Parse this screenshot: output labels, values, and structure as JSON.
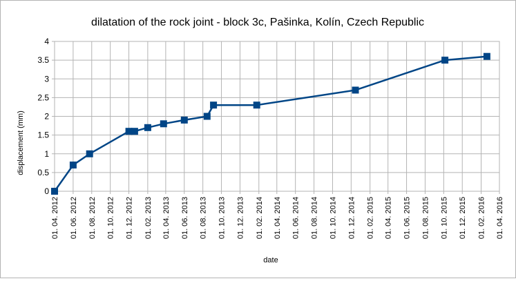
{
  "chart_data": {
    "type": "line",
    "title": "dilatation of the rock joint - block 3c, Pašinka, Kolín, Czech Republic",
    "xlabel": "date",
    "ylabel": "displacement (mm)",
    "ylim": [
      0,
      4
    ],
    "yticks": [
      "0",
      "0.5",
      "1",
      "1.5",
      "2",
      "2.5",
      "3",
      "3.5",
      "4"
    ],
    "xlim": [
      "2012-04-01",
      "2016-04-01"
    ],
    "xticks": [
      "01. 04. 2012",
      "01. 06. 2012",
      "01. 08. 2012",
      "01. 10. 2012",
      "01. 12. 2012",
      "01. 02. 2013",
      "01. 04. 2013",
      "01. 06. 2013",
      "01. 08. 2013",
      "01. 10. 2013",
      "01. 12. 2013",
      "01. 02. 2014",
      "01. 04. 2014",
      "01. 06. 2014",
      "01. 08. 2014",
      "01. 10. 2014",
      "01. 12. 2014",
      "01. 02. 2015",
      "01. 04. 2015",
      "01. 06. 2015",
      "01. 08. 2015",
      "01. 10. 2015",
      "01. 12. 2015",
      "01. 02. 2016",
      "01. 04. 2016"
    ],
    "grid": true,
    "legend": "none",
    "color": "#004586",
    "marker": "square",
    "series": [
      {
        "x": [
          "2012-04-01",
          "2012-06-01",
          "2012-07-25",
          "2012-12-01",
          "2012-12-20",
          "2013-02-01",
          "2013-03-25",
          "2013-06-01",
          "2013-08-15",
          "2013-09-05",
          "2014-01-25",
          "2014-12-15",
          "2015-10-05",
          "2016-02-20"
        ],
        "values": [
          0,
          0.7,
          1.0,
          1.6,
          1.6,
          1.7,
          1.8,
          1.9,
          2.0,
          2.3,
          2.3,
          2.7,
          3.5,
          3.6
        ]
      }
    ]
  }
}
